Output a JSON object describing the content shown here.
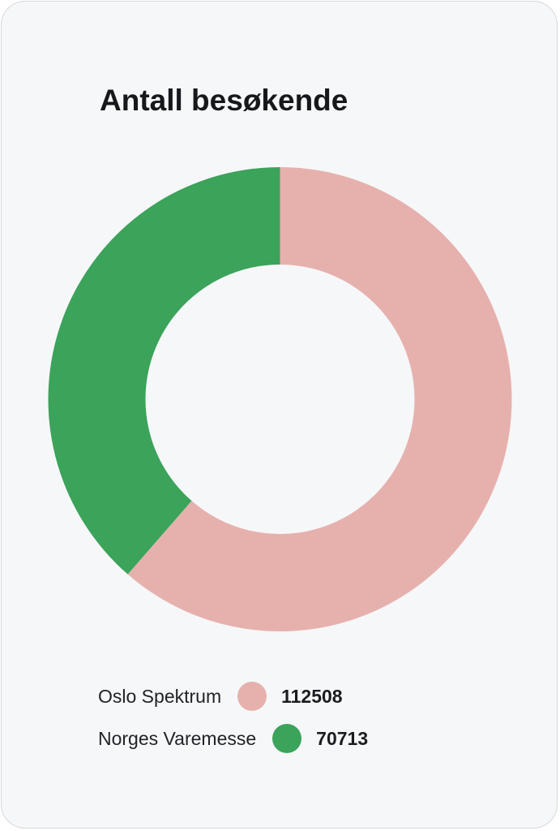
{
  "card": {
    "title": "Antall besøkende"
  },
  "chart_data": {
    "type": "pie",
    "variant": "donut",
    "title": "Antall besøkende",
    "series": [
      {
        "name": "Oslo Spektrum",
        "value": 112508,
        "value_label": "112508",
        "color": "#e6b1ad"
      },
      {
        "name": "Norges Varemesse",
        "value": 70713,
        "value_label": "70713",
        "color": "#3ba35a"
      }
    ],
    "legend": "bottom-left",
    "direction": "clockwise",
    "start": "top"
  }
}
